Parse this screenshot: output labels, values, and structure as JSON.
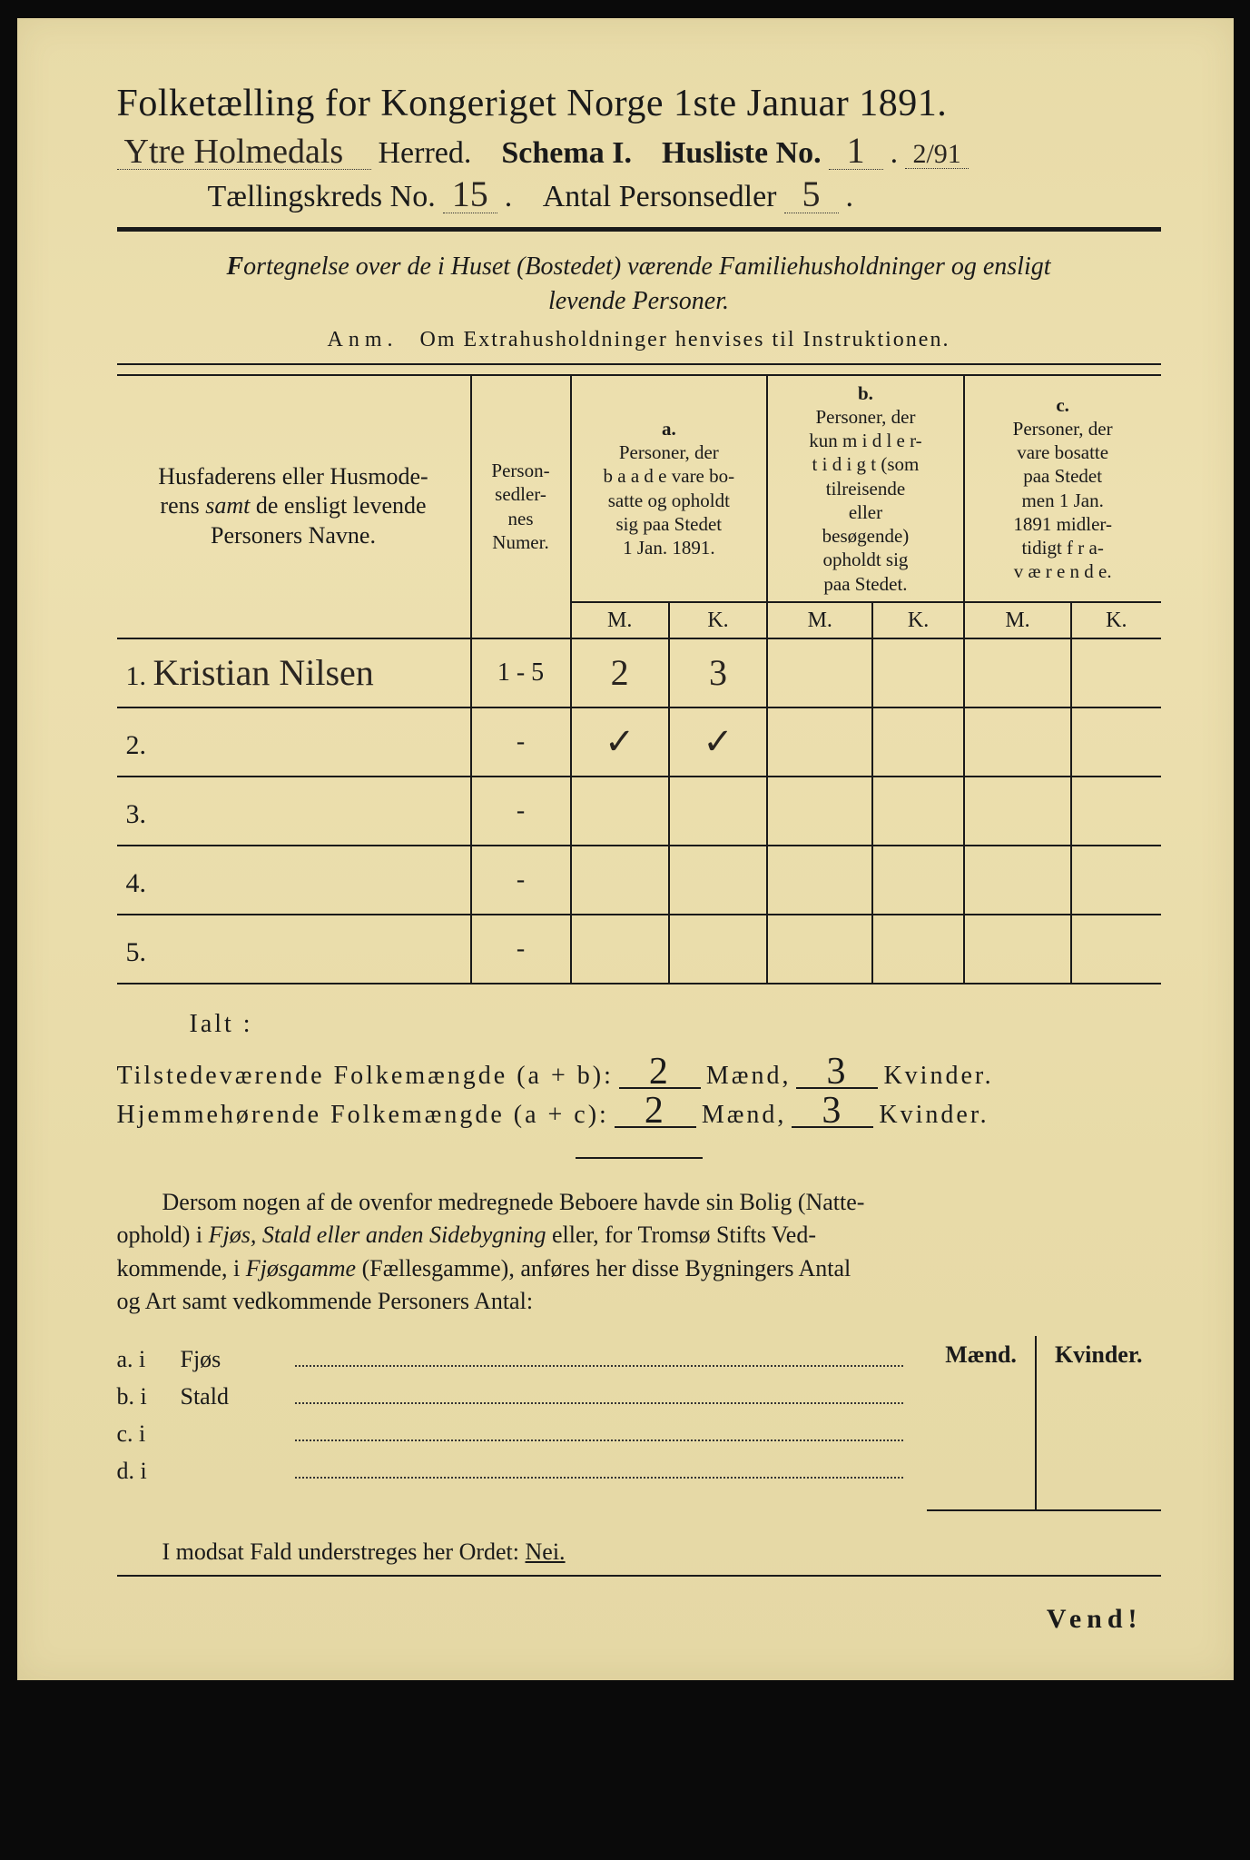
{
  "title": "Folketælling for Kongeriget Norge 1ste Januar 1891.",
  "header": {
    "herred_handwritten": "Ytre Holmedals",
    "herred_label": "Herred.",
    "schema_label": "Schema I.",
    "husliste_label": "Husliste No.",
    "husliste_no": "1",
    "husliste_frac": "2/91",
    "kreds_label": "Tællingskreds No.",
    "kreds_no": "15",
    "antal_label": "Antal Personsedler",
    "antal_no": "5"
  },
  "subtitle_html": "Fortegnelse over de i Huset (Bostedet) værende Familiehusholdninger og ensligt levende Personer.",
  "anm": {
    "prefix": "Anm.",
    "text": "Om Extrahusholdninger henvises til Instruktionen."
  },
  "table": {
    "col_name": "Husfaderens eller Husmoderens samt de ensligt levende Personers Navne.",
    "col_numer": "Person-sedler-nes Numer.",
    "group_a": {
      "tag": "a.",
      "text": "Personer, der baade vare bosatte og opholdt sig paa Stedet 1 Jan. 1891."
    },
    "group_b": {
      "tag": "b.",
      "text": "Personer, der kun midlertidigt (som tilreisende eller besøgende) opholdt sig paa Stedet."
    },
    "group_c": {
      "tag": "c.",
      "text": "Personer, der vare bosatte paa Stedet men 1 Jan. 1891 midlertidigt fraværende."
    },
    "mk_m": "M.",
    "mk_k": "K.",
    "rows": [
      {
        "n": "1.",
        "name": "Kristian Nilsen",
        "numer": "1 - 5",
        "a_m": "2",
        "a_k": "3",
        "b_m": "",
        "b_k": "",
        "c_m": "",
        "c_k": ""
      },
      {
        "n": "2.",
        "name": "",
        "numer": "-",
        "a_m": "✓",
        "a_k": "✓",
        "b_m": "",
        "b_k": "",
        "c_m": "",
        "c_k": ""
      },
      {
        "n": "3.",
        "name": "",
        "numer": "-",
        "a_m": "",
        "a_k": "",
        "b_m": "",
        "b_k": "",
        "c_m": "",
        "c_k": ""
      },
      {
        "n": "4.",
        "name": "",
        "numer": "-",
        "a_m": "",
        "a_k": "",
        "b_m": "",
        "b_k": "",
        "c_m": "",
        "c_k": ""
      },
      {
        "n": "5.",
        "name": "",
        "numer": "-",
        "a_m": "",
        "a_k": "",
        "b_m": "",
        "b_k": "",
        "c_m": "",
        "c_k": ""
      }
    ]
  },
  "totals": {
    "ialt": "Ialt :",
    "line1": {
      "label": "Tilstedeværende Folkemængde (a + b):",
      "m": "2",
      "k": "3",
      "maend": "Mænd,",
      "kvinder": "Kvinder."
    },
    "line2": {
      "label": "Hjemmehørende Folkemængde (a + c):",
      "m": "2",
      "k": "3",
      "maend": "Mænd,",
      "kvinder": "Kvinder."
    }
  },
  "paragraph": "Dersom nogen af de ovenfor medregnede Beboere havde sin Bolig (Natteophold) i Fjøs, Stald eller anden Sidebygning eller, for Tromsø Stifts Vedkommende, i Fjøsgamme (Fællesgamme), anføres her disse Bygningers Antal og Art samt vedkommende Personers Antal:",
  "buildings": {
    "header_m": "Mænd.",
    "header_k": "Kvinder.",
    "rows": [
      {
        "lead": "a. i",
        "label": "Fjøs"
      },
      {
        "lead": "b. i",
        "label": "Stald"
      },
      {
        "lead": "c. i",
        "label": ""
      },
      {
        "lead": "d. i",
        "label": ""
      }
    ]
  },
  "nei_line": {
    "text": "I modsat Fald understreges her Ordet:",
    "word": "Nei."
  },
  "vend": "Vend!",
  "colors": {
    "paper": "#e8dba8",
    "ink": "#1a1a1a",
    "handwriting": "#2a2520"
  }
}
